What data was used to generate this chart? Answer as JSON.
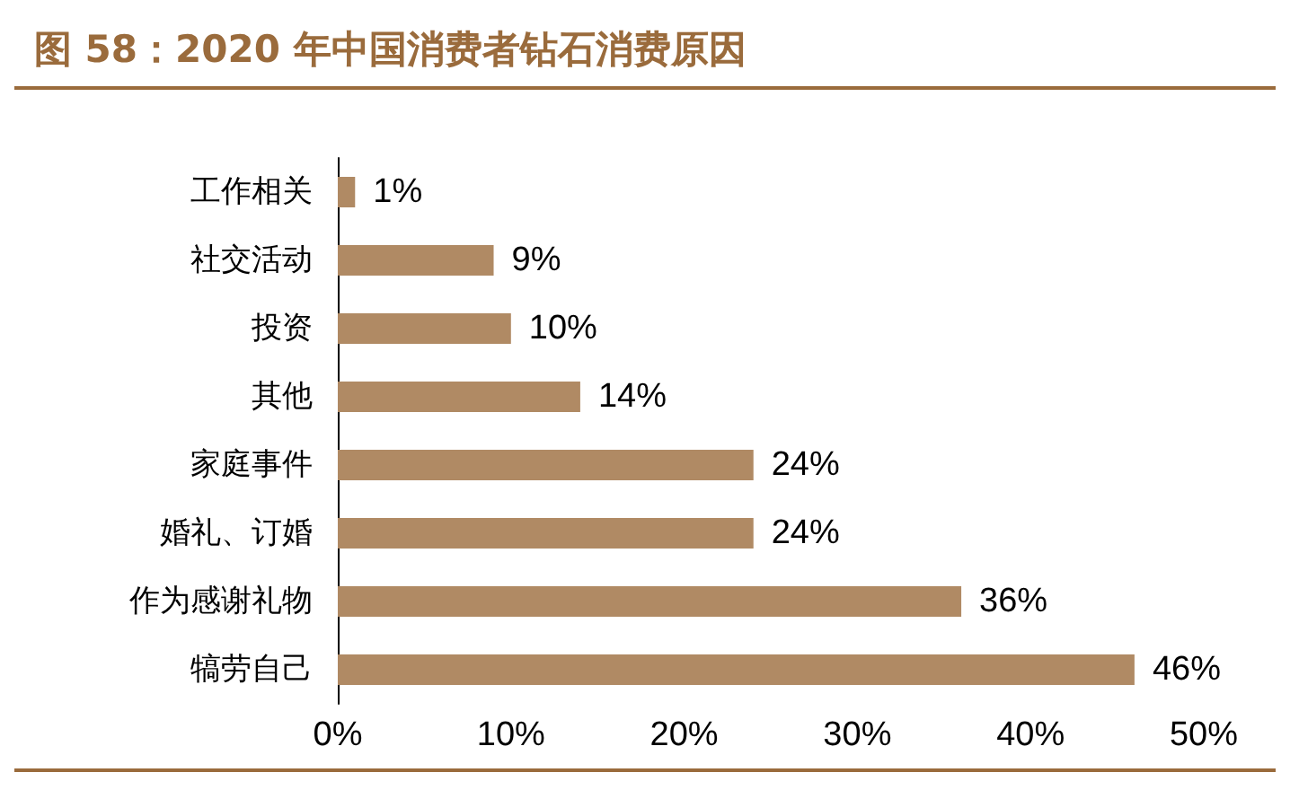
{
  "chart_data": {
    "type": "bar",
    "orientation": "horizontal",
    "title": "图 58：2020 年中国消费者钻石消费原因",
    "categories": [
      "工作相关",
      "社交活动",
      "投资",
      "其他",
      "家庭事件",
      "婚礼、订婚",
      "作为感谢礼物",
      "犒劳自己"
    ],
    "values": [
      1,
      9,
      10,
      14,
      24,
      24,
      36,
      46
    ],
    "value_labels": [
      "1%",
      "9%",
      "10%",
      "14%",
      "24%",
      "24%",
      "36%",
      "46%"
    ],
    "color": "#b08a64",
    "xlim": [
      0,
      50
    ],
    "xticks": [
      {
        "value": 0,
        "label": "0%"
      },
      {
        "value": 10,
        "label": "10%"
      },
      {
        "value": 20,
        "label": "20%"
      },
      {
        "value": 30,
        "label": "30%"
      },
      {
        "value": 40,
        "label": "40%"
      },
      {
        "value": 50,
        "label": "50%"
      }
    ],
    "grid": false
  }
}
